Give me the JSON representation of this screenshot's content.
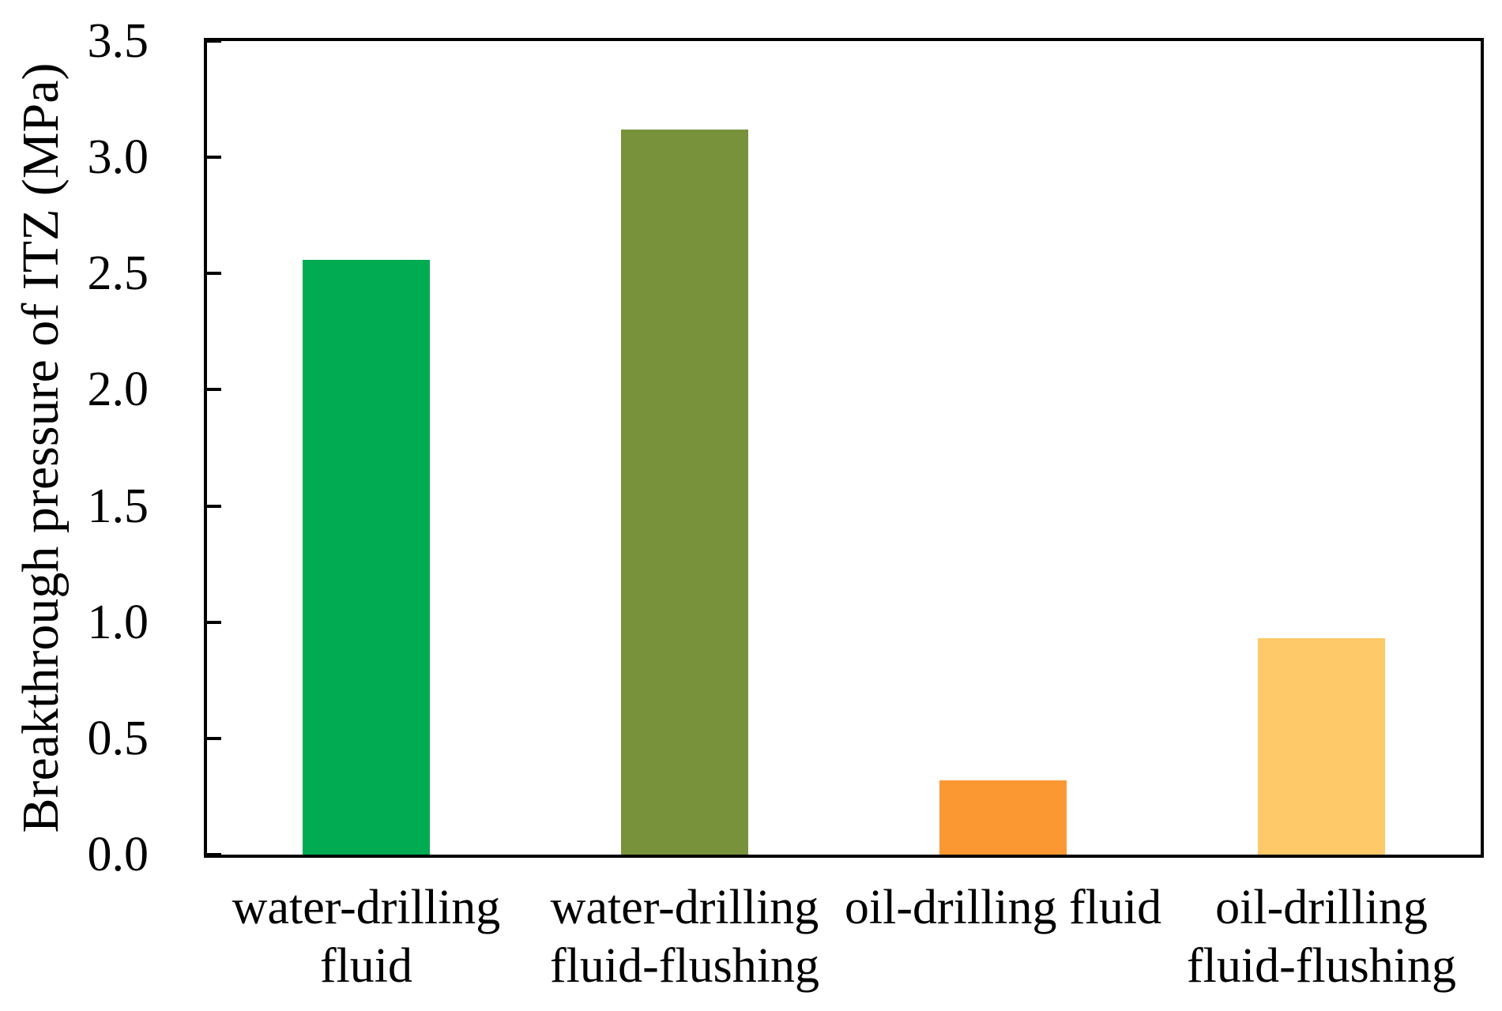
{
  "chart_data": {
    "type": "bar",
    "title": "",
    "xlabel": "",
    "ylabel": "Breakthrough pressure of ITZ (MPa)",
    "categories": [
      "water-drilling\nfluid",
      "water-drilling\nfluid-flushing",
      "oil-drilling fluid",
      "oil-drilling\nfluid-flushing"
    ],
    "values": [
      2.56,
      3.12,
      0.32,
      0.93
    ],
    "bar_colors": [
      "#00AB52",
      "#78923C",
      "#FB9832",
      "#FEC968"
    ],
    "ylim": [
      0,
      3.5
    ],
    "ytick_step": 0.5,
    "ytick_labels": [
      "0.0",
      "0.5",
      "1.0",
      "1.5",
      "2.0",
      "2.5",
      "3.0",
      "3.5"
    ],
    "grid": false,
    "legend_position": "none",
    "frame": "full-box",
    "axis_color": "#000000",
    "background_color": "#FFFFFF",
    "text_color": "#000000"
  }
}
